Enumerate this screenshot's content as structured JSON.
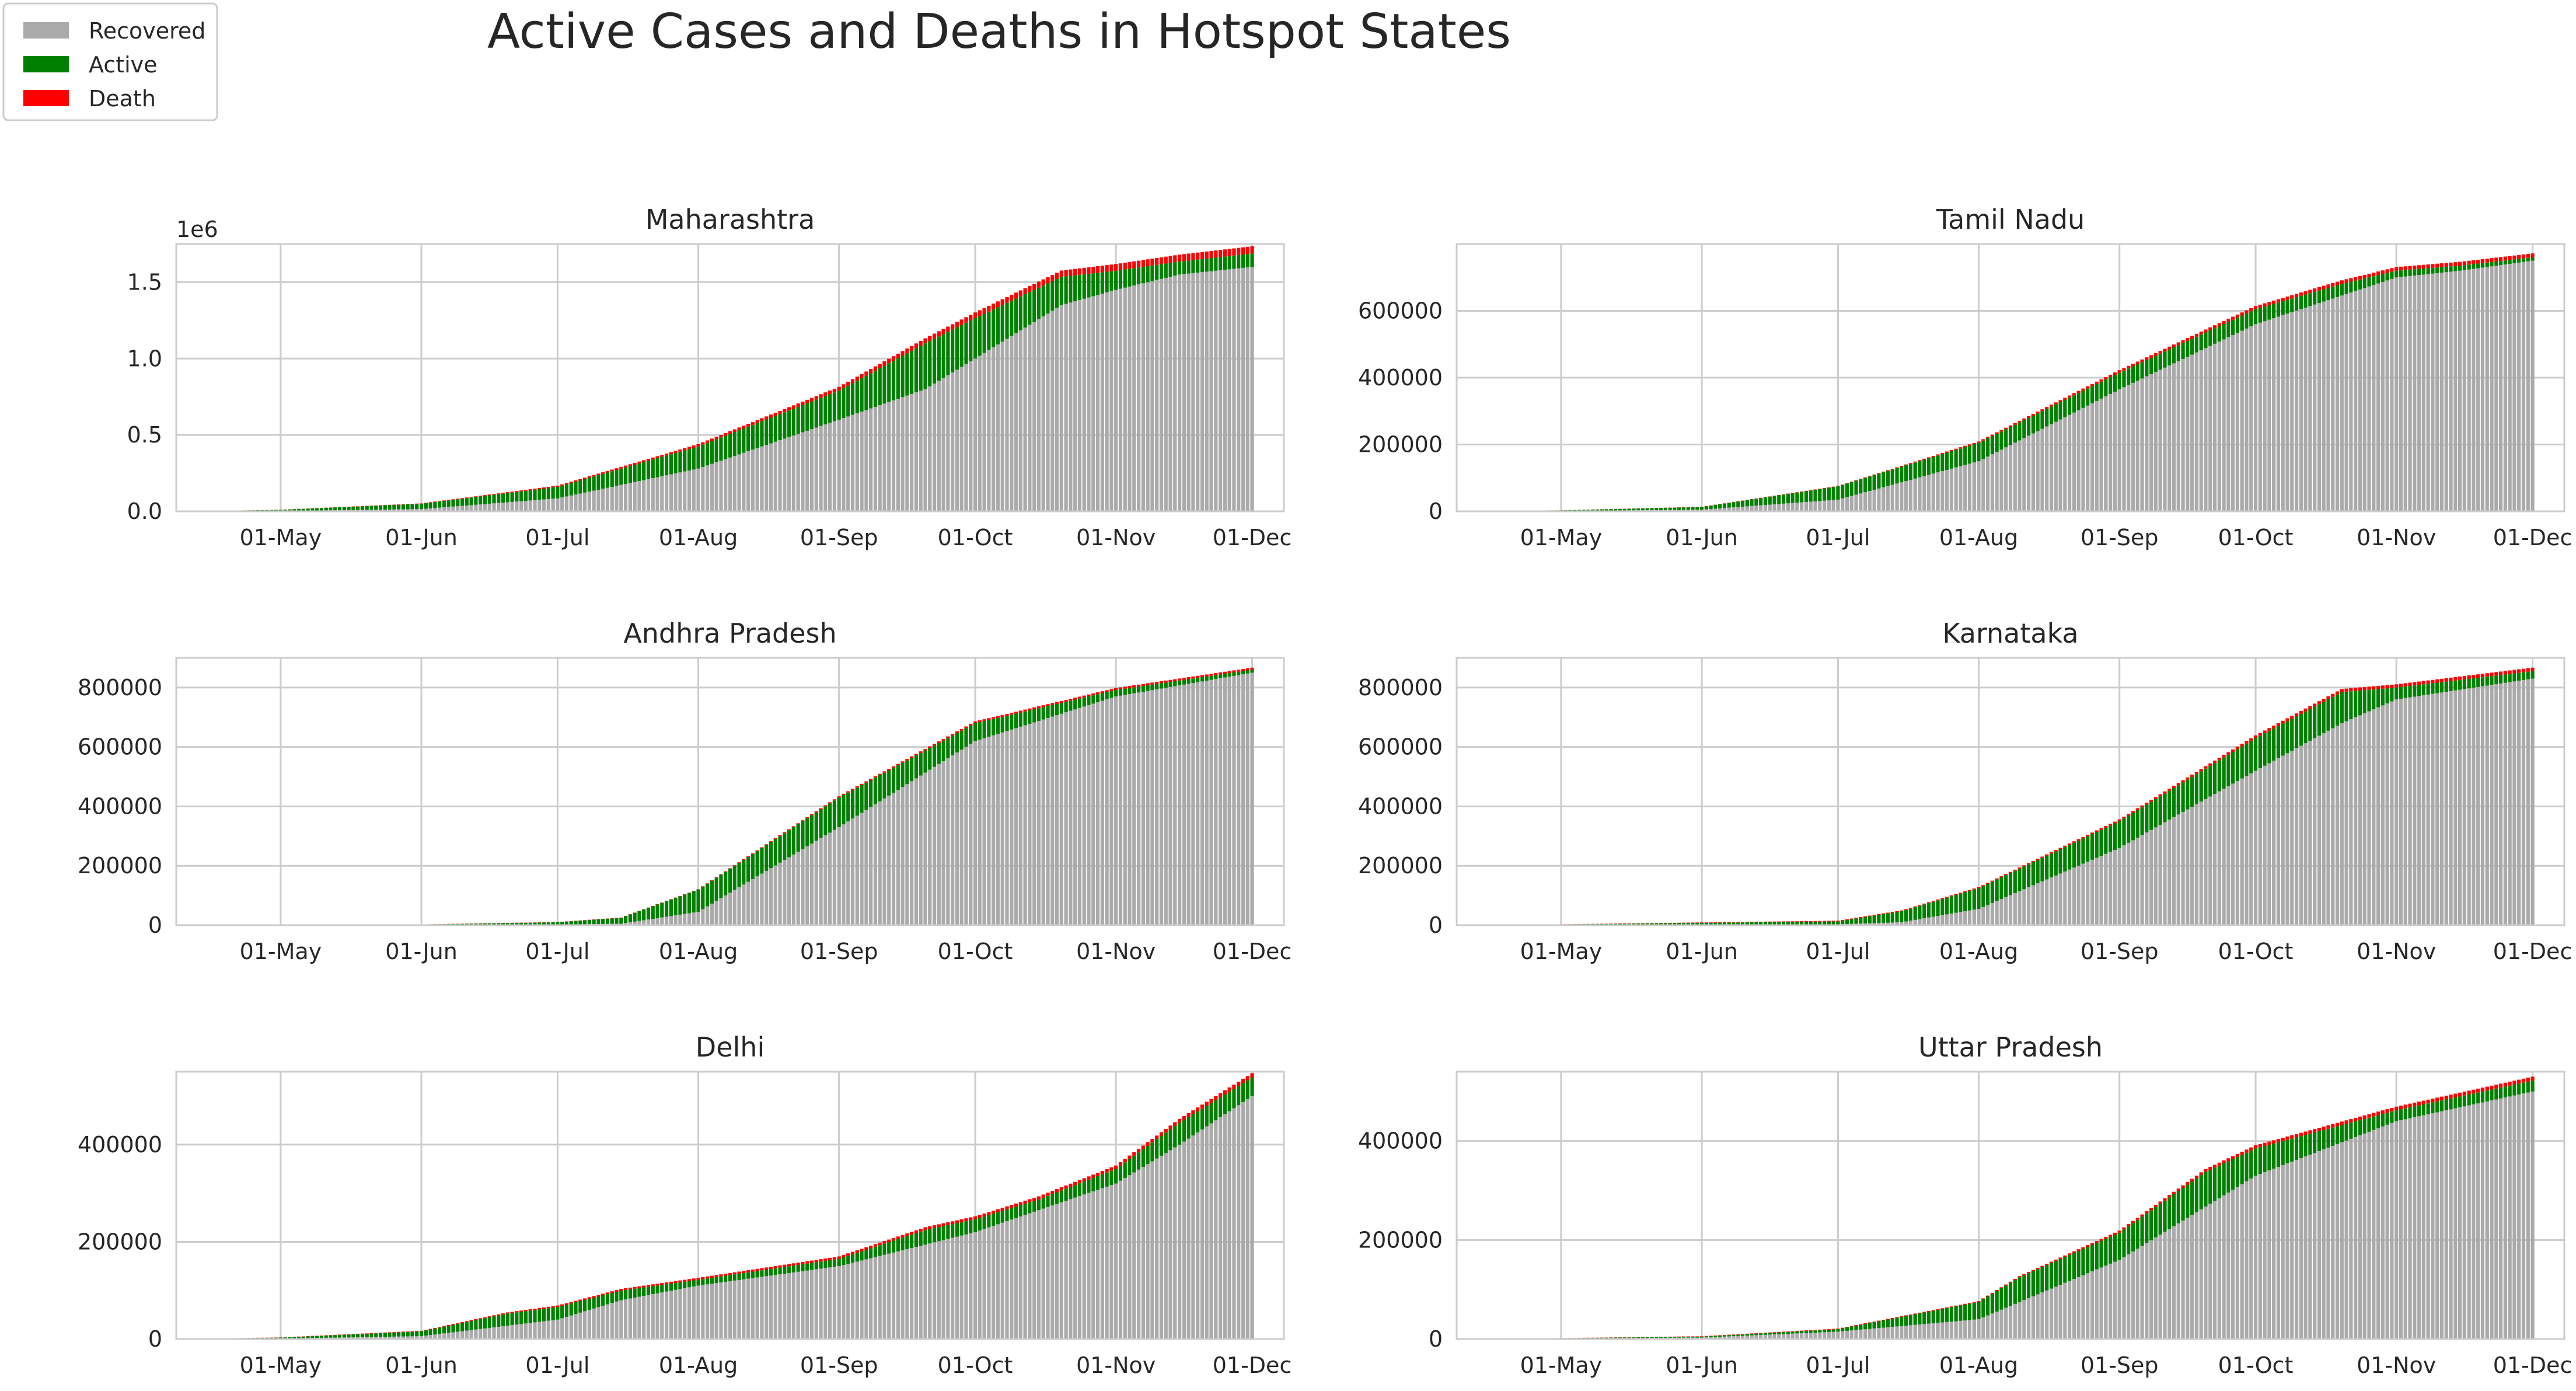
{
  "title": "Active Cases and Deaths in Hotspot States",
  "legend": {
    "placement": "top-left",
    "items": [
      {
        "label": "Recovered",
        "color": "#aaaaaa"
      },
      {
        "label": "Active",
        "color": "#008000"
      },
      {
        "label": "Death",
        "color": "#ff0000"
      }
    ]
  },
  "chart_data": [
    {
      "type": "bar",
      "stacked": true,
      "title": "Maharashtra",
      "xlabel": "",
      "ylabel": "",
      "x_start": "2020-04-15",
      "x_end": "2020-12-01",
      "xlim": [
        "2020-04-08",
        "2020-12-08"
      ],
      "xticks": [
        "01-May",
        "01-Jun",
        "01-Jul",
        "01-Aug",
        "01-Sep",
        "01-Oct",
        "01-Nov",
        "01-Dec"
      ],
      "ylim": [
        0,
        1750000
      ],
      "yticks": [
        0,
        500000,
        1000000,
        1500000
      ],
      "ytick_labels": [
        "0.0",
        "0.5",
        "1.0",
        "1.5"
      ],
      "offset_text": "1e6",
      "grid": true,
      "series": [
        {
          "name": "Recovered",
          "points": [
            [
              "2020-04-15",
              0
            ],
            [
              "2020-05-01",
              2000
            ],
            [
              "2020-06-01",
              15000
            ],
            [
              "2020-07-01",
              85000
            ],
            [
              "2020-08-01",
              280000
            ],
            [
              "2020-09-01",
              600000
            ],
            [
              "2020-09-20",
              800000
            ],
            [
              "2020-10-01",
              1000000
            ],
            [
              "2020-10-20",
              1350000
            ],
            [
              "2020-11-01",
              1450000
            ],
            [
              "2020-11-15",
              1550000
            ],
            [
              "2020-12-01",
              1600000
            ]
          ]
        },
        {
          "name": "Active",
          "points": [
            [
              "2020-04-15",
              2000
            ],
            [
              "2020-05-01",
              8000
            ],
            [
              "2020-06-01",
              35000
            ],
            [
              "2020-07-01",
              75000
            ],
            [
              "2020-08-01",
              145000
            ],
            [
              "2020-09-01",
              190000
            ],
            [
              "2020-09-20",
              300000
            ],
            [
              "2020-10-01",
              265000
            ],
            [
              "2020-10-20",
              185000
            ],
            [
              "2020-11-01",
              125000
            ],
            [
              "2020-11-15",
              85000
            ],
            [
              "2020-12-01",
              88000
            ]
          ]
        },
        {
          "name": "Death",
          "points": [
            [
              "2020-04-15",
              0
            ],
            [
              "2020-06-01",
              2000
            ],
            [
              "2020-07-01",
              8000
            ],
            [
              "2020-08-01",
              15000
            ],
            [
              "2020-09-01",
              25000
            ],
            [
              "2020-10-01",
              37000
            ],
            [
              "2020-11-01",
              44000
            ],
            [
              "2020-12-01",
              47000
            ]
          ]
        }
      ]
    },
    {
      "type": "bar",
      "stacked": true,
      "title": "Tamil Nadu",
      "xlabel": "",
      "ylabel": "",
      "x_start": "2020-04-15",
      "x_end": "2020-12-01",
      "xlim": [
        "2020-04-08",
        "2020-12-08"
      ],
      "xticks": [
        "01-May",
        "01-Jun",
        "01-Jul",
        "01-Aug",
        "01-Sep",
        "01-Oct",
        "01-Nov",
        "01-Dec"
      ],
      "ylim": [
        0,
        800000
      ],
      "yticks": [
        0,
        200000,
        400000,
        600000
      ],
      "ytick_labels": [
        "0",
        "200000",
        "400000",
        "600000"
      ],
      "offset_text": "",
      "grid": true,
      "series": [
        {
          "name": "Recovered",
          "points": [
            [
              "2020-04-15",
              0
            ],
            [
              "2020-05-01",
              1000
            ],
            [
              "2020-06-01",
              5000
            ],
            [
              "2020-07-01",
              35000
            ],
            [
              "2020-08-01",
              150000
            ],
            [
              "2020-09-01",
              365000
            ],
            [
              "2020-10-01",
              560000
            ],
            [
              "2020-11-01",
              700000
            ],
            [
              "2020-11-15",
              720000
            ],
            [
              "2020-12-01",
              750000
            ]
          ]
        },
        {
          "name": "Active",
          "points": [
            [
              "2020-04-15",
              500
            ],
            [
              "2020-05-01",
              2000
            ],
            [
              "2020-06-01",
              8000
            ],
            [
              "2020-07-01",
              40000
            ],
            [
              "2020-08-01",
              55000
            ],
            [
              "2020-09-01",
              50000
            ],
            [
              "2020-10-01",
              45000
            ],
            [
              "2020-10-20",
              35000
            ],
            [
              "2020-11-01",
              20000
            ],
            [
              "2020-12-01",
              10000
            ]
          ]
        },
        {
          "name": "Death",
          "points": [
            [
              "2020-04-15",
              0
            ],
            [
              "2020-07-01",
              1000
            ],
            [
              "2020-08-01",
              4000
            ],
            [
              "2020-09-01",
              7500
            ],
            [
              "2020-10-01",
              9500
            ],
            [
              "2020-11-01",
              11000
            ],
            [
              "2020-12-01",
              11800
            ]
          ]
        }
      ]
    },
    {
      "type": "bar",
      "stacked": true,
      "title": "Andhra Pradesh",
      "xlabel": "",
      "ylabel": "",
      "x_start": "2020-04-15",
      "x_end": "2020-12-01",
      "xlim": [
        "2020-04-08",
        "2020-12-08"
      ],
      "xticks": [
        "01-May",
        "01-Jun",
        "01-Jul",
        "01-Aug",
        "01-Sep",
        "01-Oct",
        "01-Nov",
        "01-Dec"
      ],
      "ylim": [
        0,
        900000
      ],
      "yticks": [
        0,
        200000,
        400000,
        600000,
        800000
      ],
      "ytick_labels": [
        "0",
        "200000",
        "400000",
        "600000",
        "800000"
      ],
      "offset_text": "",
      "grid": true,
      "series": [
        {
          "name": "Recovered",
          "points": [
            [
              "2020-04-15",
              0
            ],
            [
              "2020-07-01",
              2000
            ],
            [
              "2020-07-15",
              5000
            ],
            [
              "2020-08-01",
              45000
            ],
            [
              "2020-09-01",
              330000
            ],
            [
              "2020-10-01",
              620000
            ],
            [
              "2020-11-01",
              770000
            ],
            [
              "2020-12-01",
              850000
            ]
          ]
        },
        {
          "name": "Active",
          "points": [
            [
              "2020-04-15",
              0
            ],
            [
              "2020-06-01",
              1000
            ],
            [
              "2020-07-01",
              8000
            ],
            [
              "2020-07-15",
              20000
            ],
            [
              "2020-08-01",
              75000
            ],
            [
              "2020-09-01",
              100000
            ],
            [
              "2020-10-01",
              60000
            ],
            [
              "2020-11-01",
              22000
            ],
            [
              "2020-12-01",
              10000
            ]
          ]
        },
        {
          "name": "Death",
          "points": [
            [
              "2020-04-15",
              0
            ],
            [
              "2020-08-01",
              1000
            ],
            [
              "2020-09-01",
              4000
            ],
            [
              "2020-10-01",
              6000
            ],
            [
              "2020-12-01",
              7000
            ]
          ]
        }
      ]
    },
    {
      "type": "bar",
      "stacked": true,
      "title": "Karnataka",
      "xlabel": "",
      "ylabel": "",
      "x_start": "2020-04-15",
      "x_end": "2020-12-01",
      "xlim": [
        "2020-04-08",
        "2020-12-08"
      ],
      "xticks": [
        "01-May",
        "01-Jun",
        "01-Jul",
        "01-Aug",
        "01-Sep",
        "01-Oct",
        "01-Nov",
        "01-Dec"
      ],
      "ylim": [
        0,
        900000
      ],
      "yticks": [
        0,
        200000,
        400000,
        600000,
        800000
      ],
      "ytick_labels": [
        "0",
        "200000",
        "400000",
        "600000",
        "800000"
      ],
      "offset_text": "",
      "grid": true,
      "series": [
        {
          "name": "Recovered",
          "points": [
            [
              "2020-04-15",
              0
            ],
            [
              "2020-07-01",
              3000
            ],
            [
              "2020-07-15",
              10000
            ],
            [
              "2020-08-01",
              55000
            ],
            [
              "2020-09-01",
              260000
            ],
            [
              "2020-10-01",
              520000
            ],
            [
              "2020-10-20",
              680000
            ],
            [
              "2020-11-01",
              760000
            ],
            [
              "2020-12-01",
              830000
            ]
          ]
        },
        {
          "name": "Active",
          "points": [
            [
              "2020-04-15",
              0
            ],
            [
              "2020-07-01",
              10000
            ],
            [
              "2020-08-01",
              70000
            ],
            [
              "2020-09-01",
              90000
            ],
            [
              "2020-10-01",
              110000
            ],
            [
              "2020-10-20",
              105000
            ],
            [
              "2020-11-01",
              40000
            ],
            [
              "2020-12-01",
              25000
            ]
          ]
        },
        {
          "name": "Death",
          "points": [
            [
              "2020-04-15",
              0
            ],
            [
              "2020-08-01",
              3000
            ],
            [
              "2020-09-01",
              6000
            ],
            [
              "2020-10-01",
              9000
            ],
            [
              "2020-11-01",
              11000
            ],
            [
              "2020-12-01",
              12000
            ]
          ]
        }
      ]
    },
    {
      "type": "bar",
      "stacked": true,
      "title": "Delhi",
      "xlabel": "",
      "ylabel": "",
      "x_start": "2020-04-15",
      "x_end": "2020-12-01",
      "xlim": [
        "2020-04-08",
        "2020-12-08"
      ],
      "xticks": [
        "01-May",
        "01-Jun",
        "01-Jul",
        "01-Aug",
        "01-Sep",
        "01-Oct",
        "01-Nov",
        "01-Dec"
      ],
      "ylim": [
        0,
        550000
      ],
      "yticks": [
        0,
        200000,
        400000
      ],
      "ytick_labels": [
        "0",
        "200000",
        "400000"
      ],
      "offset_text": "",
      "grid": true,
      "series": [
        {
          "name": "Recovered",
          "points": [
            [
              "2020-04-15",
              0
            ],
            [
              "2020-05-01",
              1000
            ],
            [
              "2020-06-01",
              6000
            ],
            [
              "2020-07-01",
              40000
            ],
            [
              "2020-07-15",
              80000
            ],
            [
              "2020-08-01",
              110000
            ],
            [
              "2020-09-01",
              150000
            ],
            [
              "2020-10-01",
              220000
            ],
            [
              "2020-11-01",
              320000
            ],
            [
              "2020-11-15",
              400000
            ],
            [
              "2020-12-01",
              500000
            ]
          ]
        },
        {
          "name": "Active",
          "points": [
            [
              "2020-04-15",
              1000
            ],
            [
              "2020-05-01",
              2000
            ],
            [
              "2020-06-01",
              10000
            ],
            [
              "2020-06-20",
              25000
            ],
            [
              "2020-07-01",
              26000
            ],
            [
              "2020-08-01",
              12000
            ],
            [
              "2020-09-01",
              15000
            ],
            [
              "2020-09-20",
              30000
            ],
            [
              "2020-10-15",
              22000
            ],
            [
              "2020-11-01",
              30000
            ],
            [
              "2020-11-15",
              45000
            ],
            [
              "2020-12-01",
              38000
            ]
          ]
        },
        {
          "name": "Death",
          "points": [
            [
              "2020-04-15",
              0
            ],
            [
              "2020-06-01",
              1000
            ],
            [
              "2020-07-01",
              3000
            ],
            [
              "2020-09-01",
              5000
            ],
            [
              "2020-11-01",
              7000
            ],
            [
              "2020-12-01",
              9000
            ]
          ]
        }
      ]
    },
    {
      "type": "bar",
      "stacked": true,
      "title": "Uttar Pradesh",
      "xlabel": "",
      "ylabel": "",
      "x_start": "2020-04-15",
      "x_end": "2020-12-01",
      "xlim": [
        "2020-04-08",
        "2020-12-08"
      ],
      "xticks": [
        "01-May",
        "01-Jun",
        "01-Jul",
        "01-Aug",
        "01-Sep",
        "01-Oct",
        "01-Nov",
        "01-Dec"
      ],
      "ylim": [
        0,
        540000
      ],
      "yticks": [
        0,
        200000,
        400000
      ],
      "ytick_labels": [
        "0",
        "200000",
        "400000"
      ],
      "offset_text": "",
      "grid": true,
      "series": [
        {
          "name": "Recovered",
          "points": [
            [
              "2020-04-15",
              0
            ],
            [
              "2020-06-01",
              3000
            ],
            [
              "2020-07-01",
              15000
            ],
            [
              "2020-08-01",
              40000
            ],
            [
              "2020-09-01",
              160000
            ],
            [
              "2020-10-01",
              330000
            ],
            [
              "2020-11-01",
              440000
            ],
            [
              "2020-12-01",
              500000
            ]
          ]
        },
        {
          "name": "Active",
          "points": [
            [
              "2020-04-15",
              0
            ],
            [
              "2020-06-01",
              2000
            ],
            [
              "2020-07-01",
              5000
            ],
            [
              "2020-08-01",
              35000
            ],
            [
              "2020-08-10",
              50000
            ],
            [
              "2020-09-01",
              55000
            ],
            [
              "2020-09-20",
              70000
            ],
            [
              "2020-10-01",
              55000
            ],
            [
              "2020-11-01",
              22000
            ],
            [
              "2020-12-01",
              22000
            ]
          ]
        },
        {
          "name": "Death",
          "points": [
            [
              "2020-04-15",
              0
            ],
            [
              "2020-08-01",
              1500
            ],
            [
              "2020-09-01",
              4000
            ],
            [
              "2020-10-01",
              6500
            ],
            [
              "2020-11-01",
              7500
            ],
            [
              "2020-12-01",
              8000
            ]
          ]
        }
      ]
    }
  ]
}
